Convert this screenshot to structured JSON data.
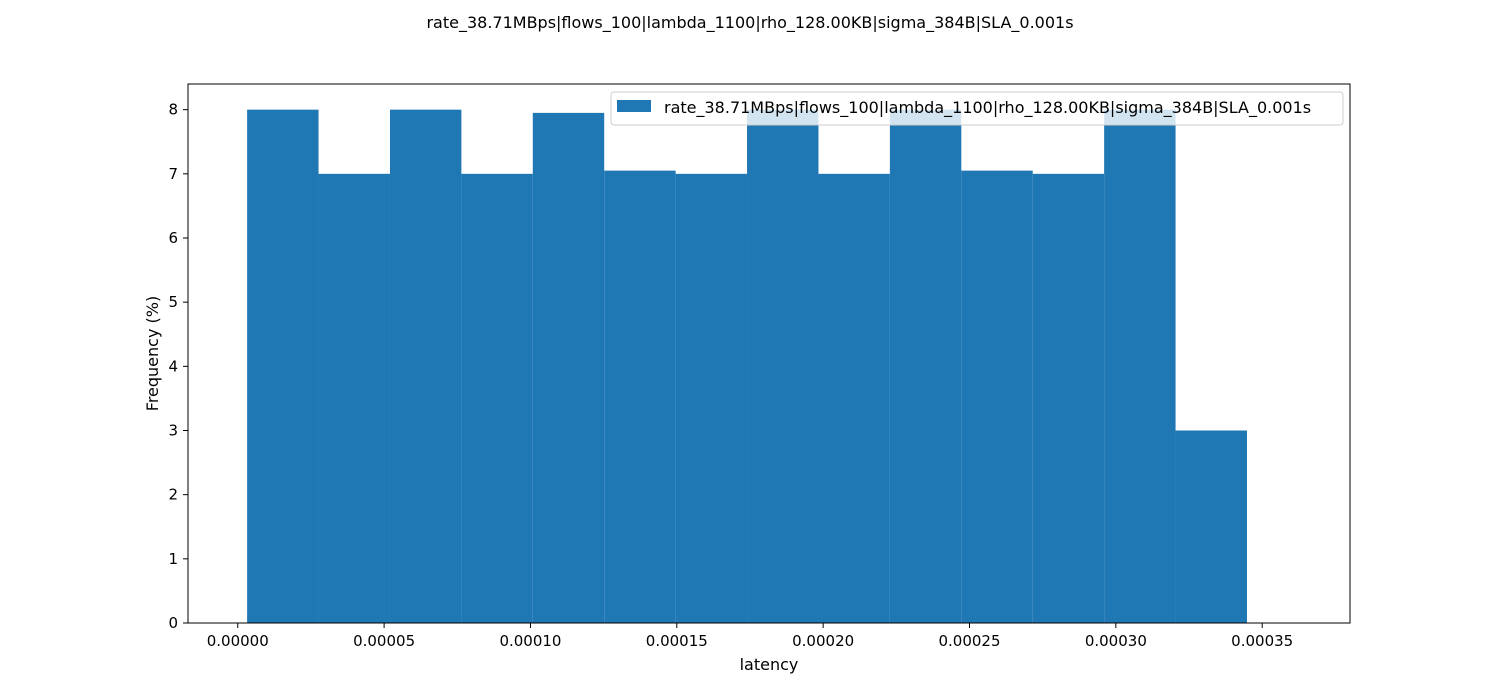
{
  "chart_data": {
    "type": "bar",
    "title": "rate_38.71MBps|flows_100|lambda_1100|rho_128.00KB|sigma_384B|SLA_0.001s",
    "xlabel": "latency",
    "ylabel": "Frequency (%)",
    "xlim": [
      -1.7e-05,
      0.00038
    ],
    "ylim": [
      0,
      8.4
    ],
    "bins": [
      {
        "x0": 3.2e-06,
        "x1": 2.76e-05,
        "value": 8.0
      },
      {
        "x0": 2.76e-05,
        "x1": 5.2e-05,
        "value": 7.0
      },
      {
        "x0": 5.2e-05,
        "x1": 7.64e-05,
        "value": 8.0
      },
      {
        "x0": 7.64e-05,
        "x1": 0.0001008,
        "value": 7.0
      },
      {
        "x0": 0.0001008,
        "x1": 0.0001252,
        "value": 7.95
      },
      {
        "x0": 0.0001252,
        "x1": 0.0001496,
        "value": 7.05
      },
      {
        "x0": 0.0001496,
        "x1": 0.000174,
        "value": 7.0
      },
      {
        "x0": 0.000174,
        "x1": 0.0001984,
        "value": 8.0
      },
      {
        "x0": 0.0001984,
        "x1": 0.0002228,
        "value": 7.0
      },
      {
        "x0": 0.0002228,
        "x1": 0.0002472,
        "value": 8.0
      },
      {
        "x0": 0.0002472,
        "x1": 0.0002716,
        "value": 7.05
      },
      {
        "x0": 0.0002716,
        "x1": 0.000296,
        "value": 7.0
      },
      {
        "x0": 0.000296,
        "x1": 0.0003204,
        "value": 8.0
      },
      {
        "x0": 0.0003204,
        "x1": 0.0003448,
        "value": 3.0
      }
    ],
    "x_ticks": [
      {
        "value": 0.0,
        "label": "0.00000"
      },
      {
        "value": 5e-05,
        "label": "0.00005"
      },
      {
        "value": 0.0001,
        "label": "0.00010"
      },
      {
        "value": 0.00015,
        "label": "0.00015"
      },
      {
        "value": 0.0002,
        "label": "0.00020"
      },
      {
        "value": 0.00025,
        "label": "0.00025"
      },
      {
        "value": 0.0003,
        "label": "0.00030"
      },
      {
        "value": 0.00035,
        "label": "0.00035"
      }
    ],
    "y_ticks": [
      {
        "value": 0,
        "label": "0"
      },
      {
        "value": 1,
        "label": "1"
      },
      {
        "value": 2,
        "label": "2"
      },
      {
        "value": 3,
        "label": "3"
      },
      {
        "value": 4,
        "label": "4"
      },
      {
        "value": 5,
        "label": "5"
      },
      {
        "value": 6,
        "label": "6"
      },
      {
        "value": 7,
        "label": "7"
      },
      {
        "value": 8,
        "label": "8"
      }
    ],
    "legend": {
      "position": "top-right",
      "entries": [
        {
          "label": "rate_38.71MBps|flows_100|lambda_1100|rho_128.00KB|sigma_384B|SLA_0.001s",
          "color": "#1f77b4"
        }
      ]
    },
    "bar_color": "#1f77b4",
    "legend_box_opacity": 0.8,
    "grid": false
  }
}
